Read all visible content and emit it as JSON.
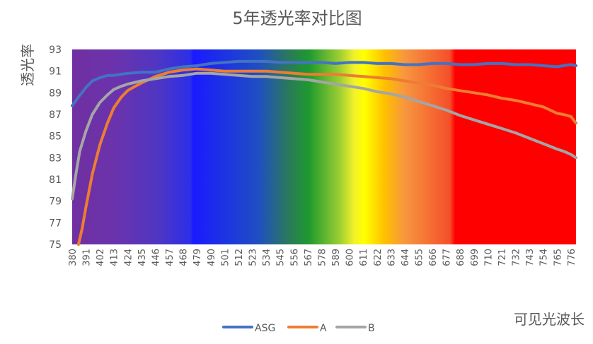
{
  "chart_data": {
    "type": "line",
    "title": "5年透光率对比图",
    "ylabel": "透光率",
    "xlabel": "可见光波长",
    "ylim": [
      75,
      93
    ],
    "yticks": [
      75,
      77,
      79,
      81,
      83,
      85,
      87,
      89,
      91,
      93
    ],
    "xlim": [
      380,
      780
    ],
    "xticks": [
      380,
      391,
      402,
      413,
      424,
      435,
      446,
      457,
      468,
      479,
      490,
      501,
      512,
      523,
      534,
      545,
      556,
      567,
      578,
      589,
      600,
      611,
      622,
      633,
      644,
      655,
      666,
      677,
      688,
      699,
      710,
      721,
      732,
      743,
      754,
      765,
      776
    ],
    "background": "visible spectrum gradient (violet to red)",
    "legend_position": "bottom",
    "series": [
      {
        "name": "ASG",
        "color": "#4472C4",
        "x": [
          380,
          385,
          391,
          396,
          402,
          408,
          413,
          424,
          435,
          446,
          457,
          468,
          479,
          490,
          501,
          512,
          523,
          534,
          545,
          556,
          567,
          578,
          589,
          600,
          611,
          622,
          633,
          644,
          655,
          666,
          677,
          688,
          699,
          710,
          721,
          732,
          743,
          754,
          765,
          770,
          776,
          780
        ],
        "values": [
          87.8,
          88.6,
          89.5,
          90.1,
          90.4,
          90.6,
          90.6,
          90.8,
          90.9,
          90.9,
          91.2,
          91.4,
          91.5,
          91.7,
          91.8,
          91.9,
          91.9,
          91.9,
          91.8,
          91.8,
          91.8,
          91.8,
          91.7,
          91.8,
          91.8,
          91.7,
          91.7,
          91.6,
          91.6,
          91.7,
          91.7,
          91.6,
          91.6,
          91.7,
          91.7,
          91.6,
          91.6,
          91.5,
          91.4,
          91.5,
          91.6,
          91.5
        ]
      },
      {
        "name": "A",
        "color": "#ED7D31",
        "x": [
          385,
          388,
          391,
          396,
          402,
          408,
          413,
          419,
          424,
          430,
          435,
          446,
          457,
          468,
          479,
          490,
          501,
          512,
          523,
          534,
          545,
          556,
          567,
          578,
          589,
          600,
          611,
          622,
          633,
          644,
          655,
          666,
          677,
          688,
          699,
          710,
          721,
          732,
          743,
          754,
          765,
          770,
          776,
          780
        ],
        "values": [
          75.0,
          76.5,
          78.5,
          81.5,
          84.2,
          86.2,
          87.6,
          88.6,
          89.2,
          89.6,
          89.9,
          90.5,
          90.9,
          91.1,
          91.2,
          91.1,
          91.0,
          91.0,
          91.0,
          91.0,
          90.9,
          90.8,
          90.7,
          90.7,
          90.7,
          90.6,
          90.5,
          90.4,
          90.3,
          90.1,
          89.9,
          89.7,
          89.4,
          89.2,
          89.0,
          88.8,
          88.5,
          88.3,
          88.0,
          87.7,
          87.1,
          87.0,
          86.8,
          86.2
        ]
      },
      {
        "name": "B",
        "color": "#A5A5A5",
        "x": [
          380,
          383,
          386,
          391,
          396,
          402,
          408,
          413,
          419,
          424,
          435,
          446,
          457,
          468,
          479,
          490,
          501,
          512,
          523,
          534,
          545,
          556,
          567,
          578,
          589,
          600,
          611,
          622,
          633,
          644,
          655,
          666,
          677,
          688,
          699,
          710,
          721,
          732,
          743,
          754,
          765,
          770,
          776,
          780
        ],
        "values": [
          79.2,
          81.5,
          83.6,
          85.5,
          87.0,
          88.1,
          88.8,
          89.3,
          89.6,
          89.8,
          90.1,
          90.3,
          90.5,
          90.6,
          90.8,
          90.8,
          90.7,
          90.6,
          90.5,
          90.5,
          90.4,
          90.3,
          90.2,
          90.0,
          89.8,
          89.6,
          89.4,
          89.1,
          88.9,
          88.6,
          88.2,
          87.8,
          87.4,
          86.9,
          86.5,
          86.1,
          85.7,
          85.3,
          84.8,
          84.3,
          83.8,
          83.6,
          83.3,
          83.0
        ]
      }
    ]
  }
}
